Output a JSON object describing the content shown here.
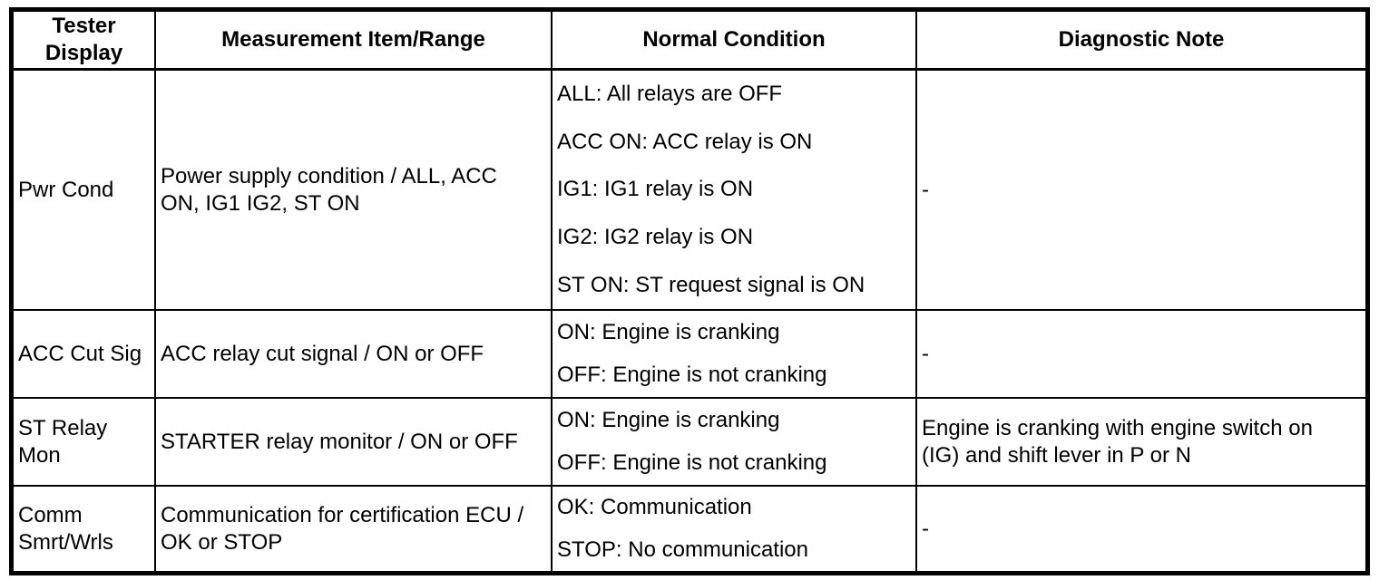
{
  "colors": {
    "border": "#000000",
    "background": "#ffffff",
    "text": "#000000"
  },
  "table": {
    "columns": [
      "Tester\nDisplay",
      "Measurement Item/Range",
      "Normal Condition",
      "Diagnostic Note"
    ],
    "rows": [
      {
        "tester_display": "Pwr Cond",
        "measurement_item_range": "Power supply condition / ALL, ACC\nON, IG1 IG2, ST ON",
        "normal_conditions": [
          "ALL: All relays are OFF",
          "ACC ON: ACC relay is ON",
          "IG1: IG1 relay is ON",
          "IG2: IG2 relay is ON",
          "ST ON: ST request signal is ON"
        ],
        "diagnostic_note": "-"
      },
      {
        "tester_display": "ACC Cut Sig",
        "measurement_item_range": "ACC relay cut signal / ON or OFF",
        "normal_conditions": [
          "ON: Engine is cranking",
          "OFF: Engine is not cranking"
        ],
        "diagnostic_note": "-"
      },
      {
        "tester_display": "ST Relay\nMon",
        "measurement_item_range": "STARTER relay monitor / ON or OFF",
        "normal_conditions": [
          "ON: Engine is cranking",
          "OFF: Engine is not cranking"
        ],
        "diagnostic_note": "Engine is cranking with engine switch on\n(IG) and shift lever in P or N"
      },
      {
        "tester_display": "Comm\nSmrt/Wrls",
        "measurement_item_range": "Communication for certification ECU /\nOK or STOP",
        "normal_conditions": [
          "OK: Communication",
          "STOP: No communication"
        ],
        "diagnostic_note": "-"
      }
    ]
  }
}
